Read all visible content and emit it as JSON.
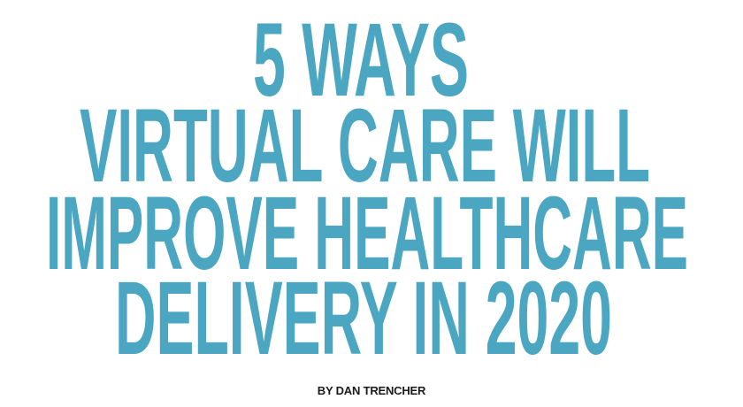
{
  "title": {
    "lines": [
      "5 WAYS",
      "VIRTUAL CARE WILL",
      "IMPROVE HEALTHCARE",
      "DELIVERY IN 2020"
    ],
    "color": "#4aa6c1"
  },
  "byline": {
    "text": "BY DAN TRENCHER",
    "color": "#1a1a1a"
  }
}
